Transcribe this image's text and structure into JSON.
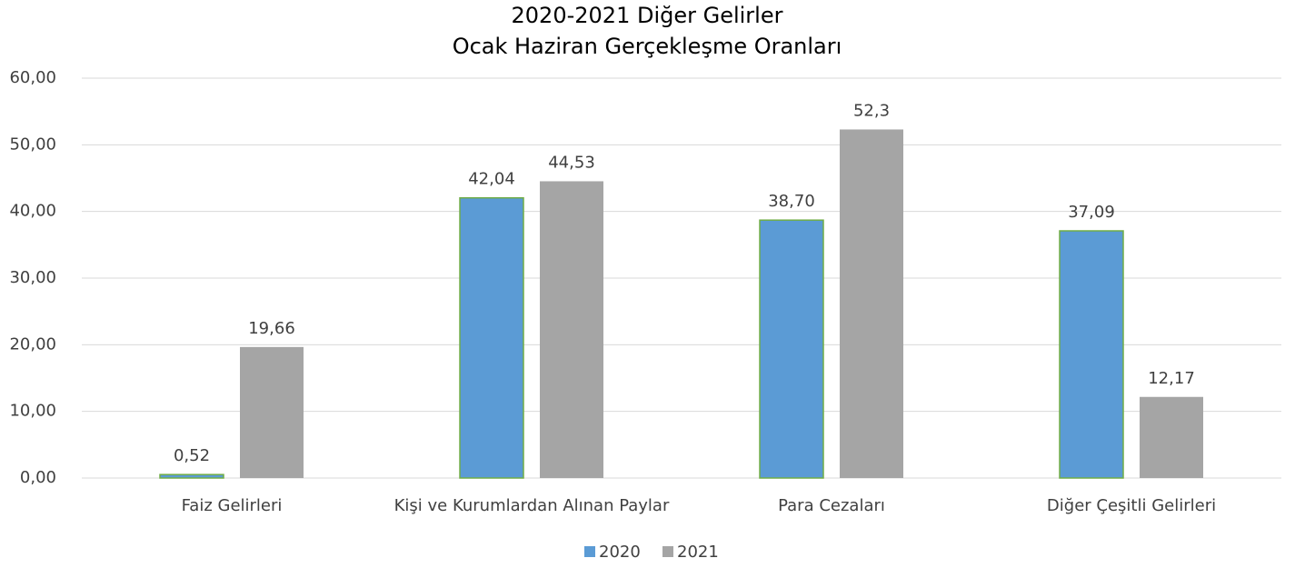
{
  "chart_data": {
    "type": "bar",
    "title": "2020-2021 Diğer Gelirler",
    "subtitle": "Ocak Haziran Gerçekleşme Oranları",
    "categories": [
      "Faiz Gelirleri",
      "Kişi ve Kurumlardan Alınan Paylar",
      "Para Cezaları",
      "Diğer Çeşitli Gelirleri"
    ],
    "series": [
      {
        "name": "2020",
        "color": "#5b9bd5",
        "values": [
          0.52,
          42.04,
          38.7,
          37.09
        ],
        "value_labels": [
          "0,52",
          "42,04",
          "38,70",
          "37,09"
        ]
      },
      {
        "name": "2021",
        "color": "#a5a5a5",
        "values": [
          19.66,
          44.53,
          52.3,
          12.17
        ],
        "value_labels": [
          "19,66",
          "44,53",
          "52,3",
          "12,17"
        ]
      }
    ],
    "ylim": [
      0,
      60
    ],
    "yticks": [
      {
        "value": 0,
        "label": "0,00"
      },
      {
        "value": 10,
        "label": "10,00"
      },
      {
        "value": 20,
        "label": "20,00"
      },
      {
        "value": 30,
        "label": "30,00"
      },
      {
        "value": 40,
        "label": "40,00"
      },
      {
        "value": 50,
        "label": "50,00"
      },
      {
        "value": 60,
        "label": "60,00"
      }
    ],
    "grid": true,
    "legend": "bottom"
  }
}
